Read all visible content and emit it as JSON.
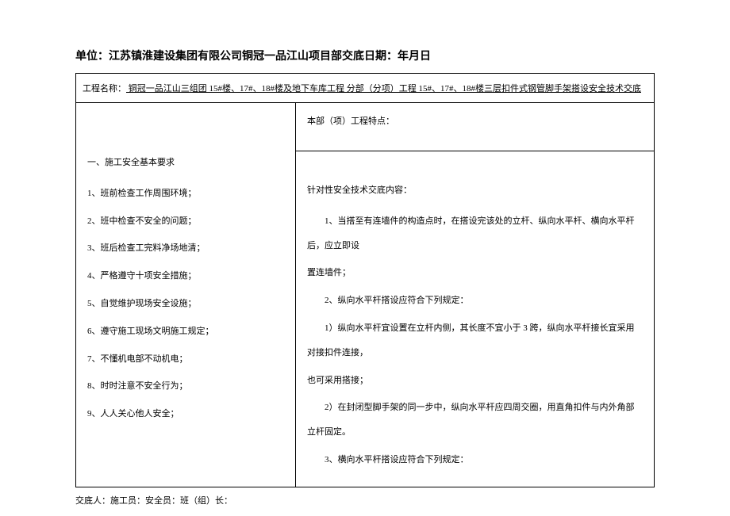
{
  "header": {
    "title": "单位：江苏镇淮建设集团有限公司铜冠一品江山项目部交底日期：年月日"
  },
  "project": {
    "label": "工程名称：",
    "value": "  铜冠一品江山三组团 15#楼、17#、18#楼及地下车库工程  分部（分项）工程  15#、17#、18#楼三层扣件式钢管脚手架搭设安全技术交底"
  },
  "left": {
    "heading": "一、施工安全基本要求",
    "items": [
      "1、班前检查工作周围环境；",
      "2、班中检查不安全的问题；",
      "3、班后检查工完料净场地清；",
      "4、严格遵守十项安全措施；",
      "5、自觉维护现场安全设施；",
      "6、遵守施工现场文明施工规定；",
      "7、不懂机电部不动机电；",
      "8、时时注意不安全行为；",
      "9、人人关心他人安全；"
    ]
  },
  "right": {
    "top_heading": "本部（项）工程特点：",
    "bottom_heading": "针对性安全技术交底内容：",
    "items": [
      {
        "text": "1、当搭至有连墙件的构造点时，在搭设完该处的立杆、纵向水平杆、横向水平杆后，应立即设",
        "indent": true
      },
      {
        "text": "置连墙件；",
        "indent": false
      },
      {
        "text": "2、纵向水平杆搭设应符合下列规定：",
        "indent": true
      },
      {
        "text": "1）纵向水平杆宜设置在立杆内侧，其长度不宜小于 3 跨，纵向水平杆接长宜采用对接扣件连接，",
        "indent": true
      },
      {
        "text": "也可采用搭接；",
        "indent": false
      },
      {
        "text": "2）在封闭型脚手架的同一步中，纵向水平杆应四周交圈，用直角扣件与内外角部立杆固定。",
        "indent": true
      },
      {
        "text": "3、横向水平杆搭设应符合下列规定：",
        "indent": true
      }
    ]
  },
  "footer": {
    "text": "交底人：施工员：安全员：班（组）长："
  },
  "style": {
    "background_color": "#ffffff",
    "border_color": "#000000",
    "text_color": "#000000",
    "font_size_header": 14,
    "font_size_body": 11
  }
}
